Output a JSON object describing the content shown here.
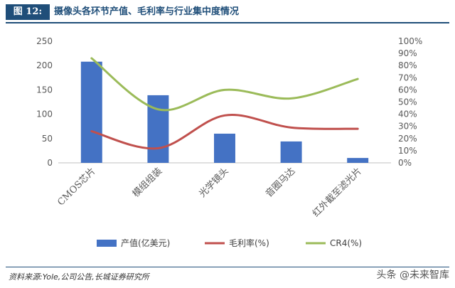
{
  "figure": {
    "label": "图 12:",
    "title": "摄像头各环节产值、毛利率与行业集中度情况"
  },
  "source": "资料来源:Yole,公司公告,长城证券研究所",
  "watermark": "头条 @未来智库",
  "chart_data": {
    "type": "bar",
    "categories": [
      "CMOS芯片",
      "模组组装",
      "光学镜头",
      "音圈马达",
      "红外截至滤光片"
    ],
    "series": [
      {
        "name": "产值(亿美元)",
        "type": "bar",
        "axis": "left",
        "color": "#4472c4",
        "values": [
          208,
          139,
          60,
          44,
          10
        ]
      },
      {
        "name": "毛利率(%)",
        "type": "line",
        "axis": "right",
        "color": "#c0504d",
        "values": [
          26,
          12,
          39,
          29,
          28
        ]
      },
      {
        "name": "CR4(%)",
        "type": "line",
        "axis": "right",
        "color": "#9bbb59",
        "values": [
          86,
          44,
          60,
          53,
          69
        ]
      }
    ],
    "y_left": {
      "ylim": [
        0,
        250
      ],
      "ticks": [
        "0",
        "50",
        "100",
        "150",
        "200",
        "250"
      ]
    },
    "y_right": {
      "ylim": [
        0,
        100
      ],
      "ticks": [
        "0%",
        "10%",
        "20%",
        "30%",
        "40%",
        "50%",
        "60%",
        "70%",
        "80%",
        "90%",
        "100%"
      ]
    },
    "grid": false,
    "legend": "bottom"
  }
}
